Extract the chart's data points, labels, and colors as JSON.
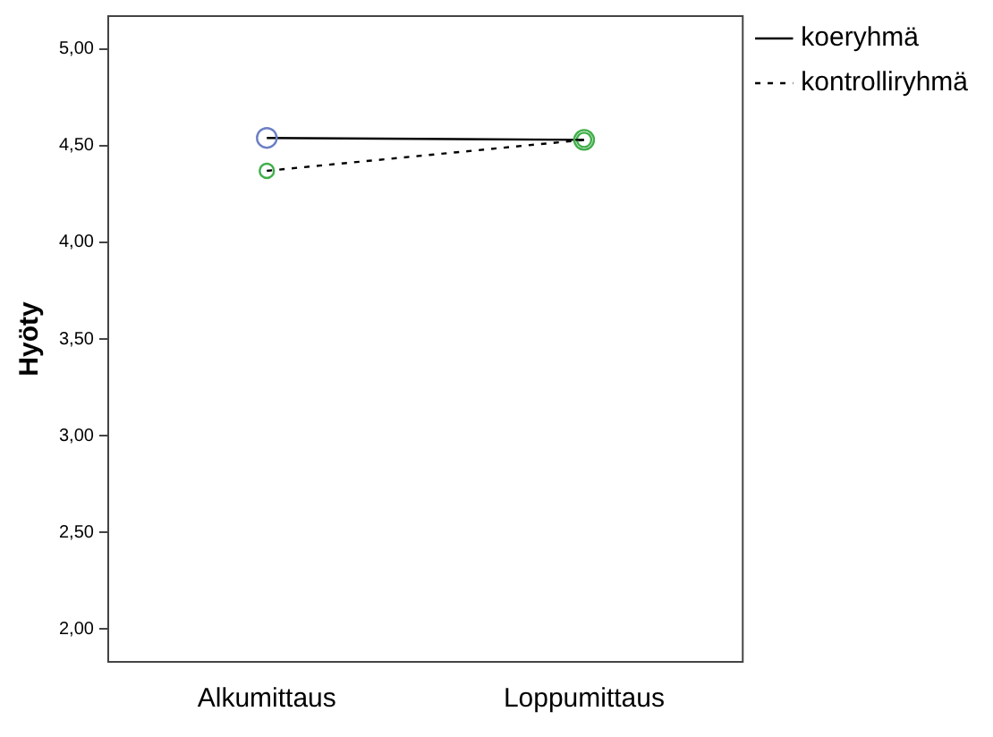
{
  "chart_data": {
    "type": "line",
    "ylabel": "Hyöty",
    "categories": [
      "Alkumittaus",
      "Loppumittaus"
    ],
    "series": [
      {
        "name": "koeryhmä",
        "color": "#000000",
        "colors": [
          "#6b7fc4",
          "#3fae49"
        ],
        "values": [
          4.54,
          4.53
        ],
        "line_style": "solid"
      },
      {
        "name": "kontrolliryhmä",
        "color": "#000000",
        "colors": [
          "#3fae49",
          "#3fae49"
        ],
        "values": [
          4.37,
          4.53
        ],
        "line_style": "dashed"
      }
    ],
    "ylim": [
      1.83,
      5.17
    ],
    "yticks": [
      {
        "value": 2,
        "label": "2,00"
      },
      {
        "value": 2.5,
        "label": "2,50"
      },
      {
        "value": 3,
        "label": "3,00"
      },
      {
        "value": 3.5,
        "label": "3,50"
      },
      {
        "value": 4,
        "label": "4,00"
      },
      {
        "value": 4.5,
        "label": "4,50"
      },
      {
        "value": 5,
        "label": "5,00"
      }
    ],
    "grid": false,
    "legend": "top right",
    "marker": "circle"
  }
}
